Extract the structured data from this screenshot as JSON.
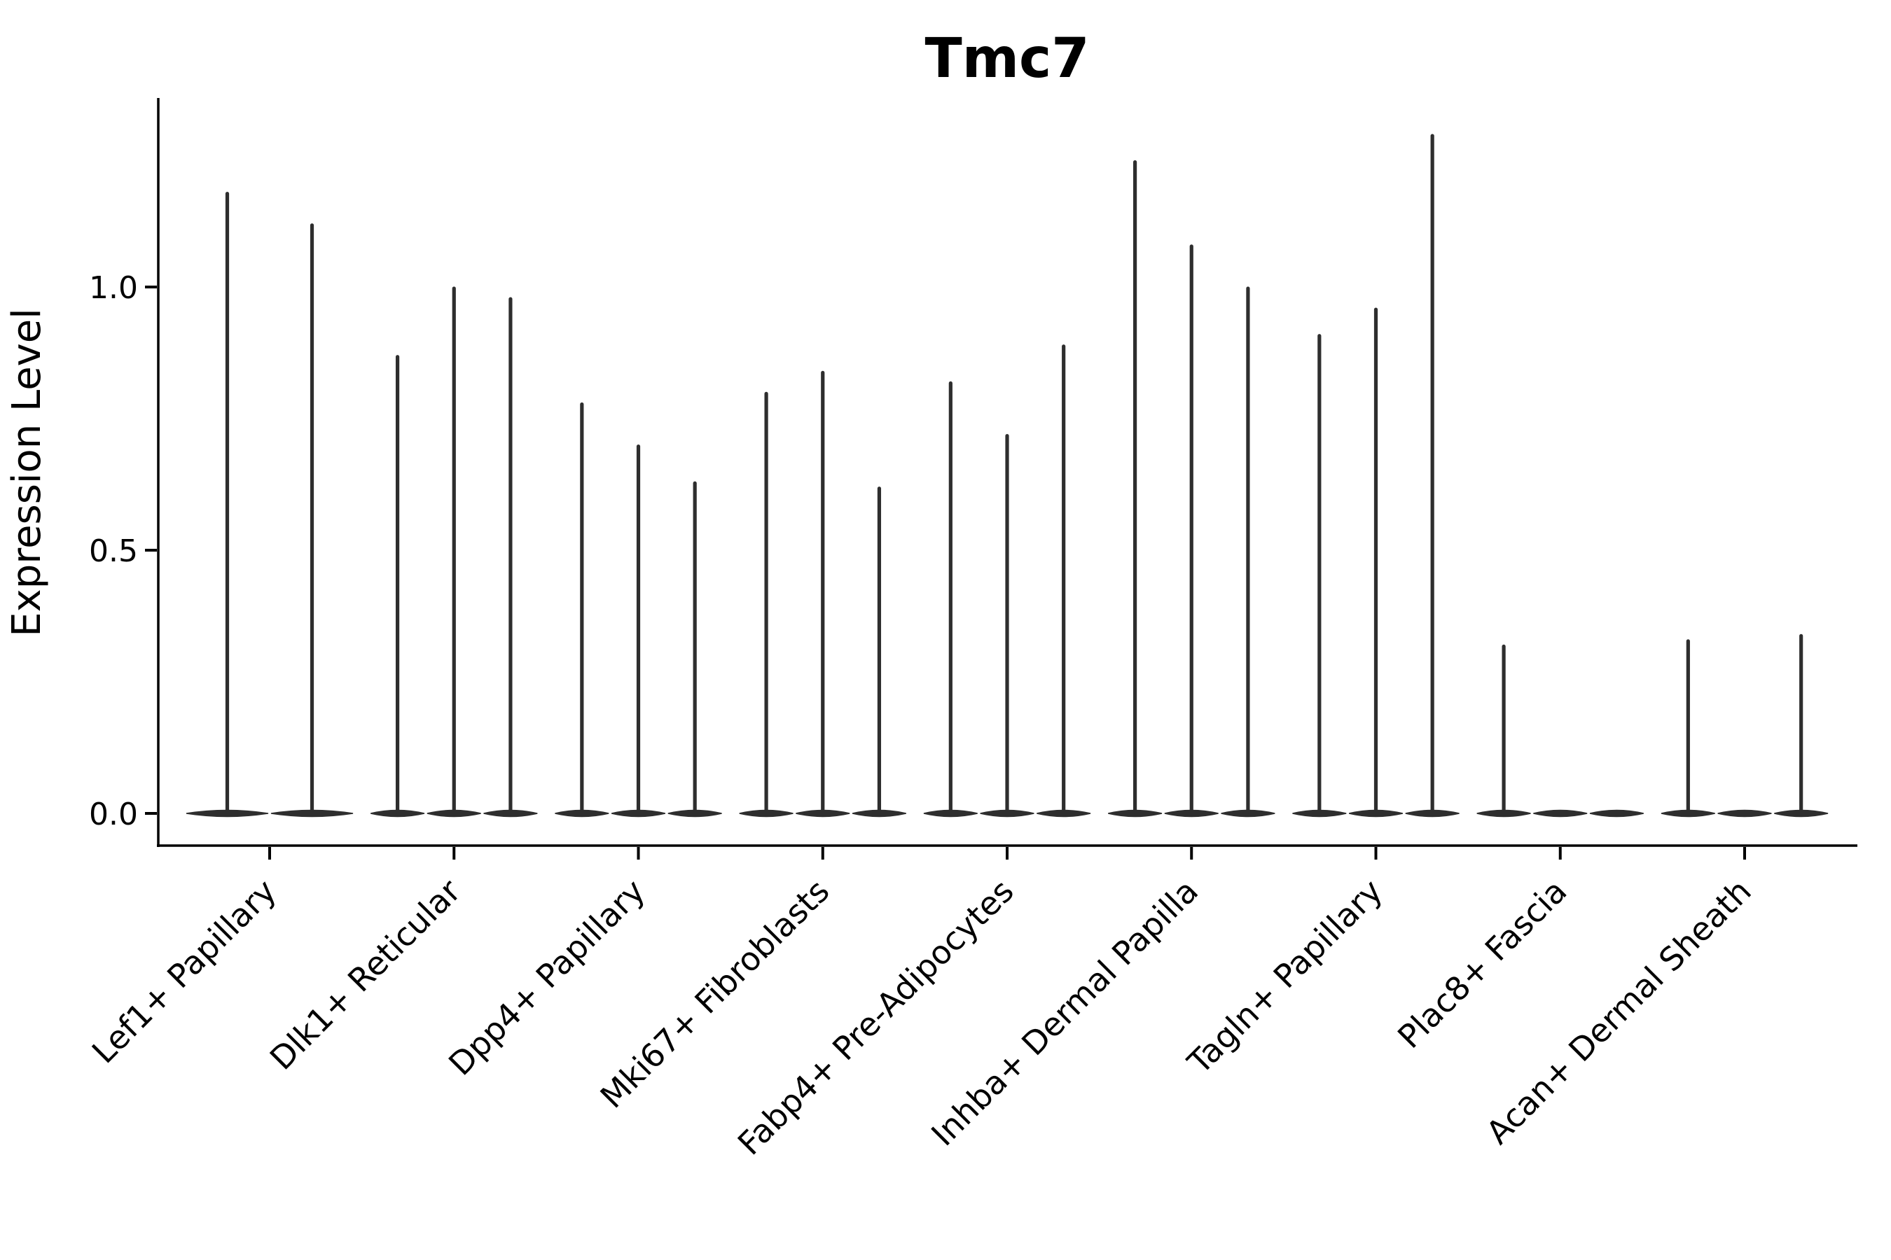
{
  "page": {
    "background": "#ffffff"
  },
  "chart_data": {
    "type": "violin",
    "title": "Tmc7",
    "xlabel": "",
    "ylabel": "Expression Level",
    "ylim": [
      -0.06,
      1.36
    ],
    "grid": false,
    "legend_position": "none",
    "yticks": {
      "values": [
        0.0,
        0.5,
        1.0
      ],
      "labels": [
        "0.0",
        "0.5",
        "1.0"
      ]
    },
    "categories": [
      "Lef1+ Papillary",
      "Dlk1+ Reticular",
      "Dpp4+ Papillary",
      "Mki67+ Fibroblasts",
      "Fabp4+ Pre-Adipocytes",
      "Inhba+ Dermal Papilla",
      "Tagln+ Papillary",
      "Plac8+ Fascia",
      "Acan+ Dermal Sheath"
    ],
    "groups": [
      {
        "label": "Lef1+ Papillary",
        "violin_maxima": [
          1.18,
          1.12
        ]
      },
      {
        "label": "Dlk1+ Reticular",
        "violin_maxima": [
          0.87,
          1.0,
          0.98
        ]
      },
      {
        "label": "Dpp4+ Papillary",
        "violin_maxima": [
          0.78,
          0.7,
          0.63
        ]
      },
      {
        "label": "Mki67+ Fibroblasts",
        "violin_maxima": [
          0.8,
          0.84,
          0.62
        ]
      },
      {
        "label": "Fabp4+ Pre-Adipocytes",
        "violin_maxima": [
          0.82,
          0.72,
          0.89
        ]
      },
      {
        "label": "Inhba+ Dermal Papilla",
        "violin_maxima": [
          1.24,
          1.08,
          1.0
        ]
      },
      {
        "label": "Tagln+ Papillary",
        "violin_maxima": [
          0.91,
          0.96,
          1.29
        ]
      },
      {
        "label": "Plac8+ Fascia",
        "violin_maxima": [
          0.32,
          0.0,
          0.0
        ]
      },
      {
        "label": "Acan+ Dermal Sheath",
        "violin_maxima": [
          0.33,
          0.0,
          0.34
        ]
      }
    ],
    "description": "Violin plot of Tmc7 expression per cluster; most cells at 0 (flat wide base), thin density spikes up to the max expression value per violin.",
    "colors": {
      "violin_ink": "#2e2e2e",
      "axis_ink": "#000000",
      "background": "#ffffff"
    }
  }
}
